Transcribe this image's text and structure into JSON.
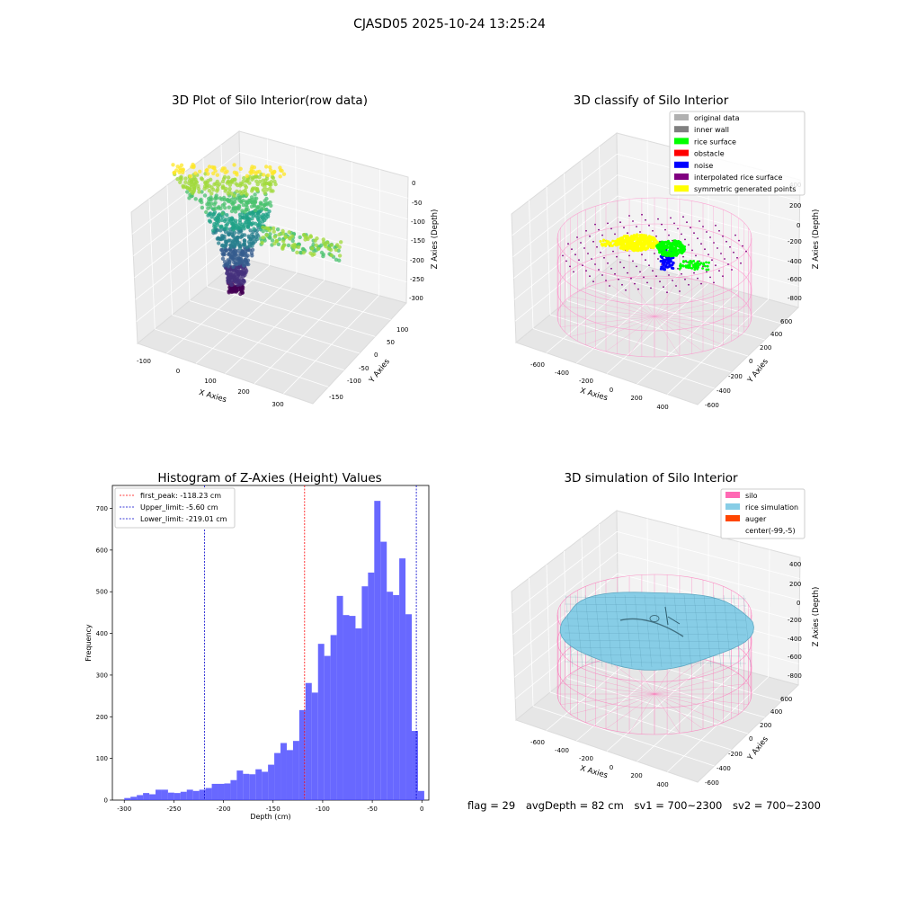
{
  "figure": {
    "suptitle": "CJASD05 2025-10-24 13:25:24"
  },
  "status": {
    "flag": "flag = 29",
    "avg_depth": "avgDepth = 82 cm",
    "sv1": "sv1 = 700~2300",
    "sv2": "sv2 = 700~2300"
  },
  "colors": {
    "histogram_bar": "#4d4dff",
    "first_peak_line": "#ff0000",
    "limit_line": "#0000cc",
    "silo_wire": "#ff69b4",
    "rice_surface": "#87cde6",
    "rice_points": "#00ff00",
    "noise_points": "#0000ff",
    "symmetric_points": "#ffff00"
  },
  "chart_data": [
    {
      "type": "scatter",
      "title": "3D Plot of Silo Interior(row data)",
      "xlabel": "X Axies",
      "ylabel": "Y Axies",
      "zlabel": "Z Axies (Depth)",
      "x_ticks": [
        "-100",
        "0",
        "100",
        "200",
        "300"
      ],
      "y_ticks": [
        "-150",
        "-100",
        "-50",
        "0",
        "50",
        "100"
      ],
      "z_ticks": [
        "0",
        "-50",
        "-100",
        "-150",
        "-200",
        "-250",
        "-300"
      ],
      "colormap": "viridis"
    },
    {
      "type": "scatter",
      "title": "3D classify of Silo Interior",
      "xlabel": "X Axies",
      "ylabel": "Y Axies",
      "zlabel": "Z Axies (Depth)",
      "x_ticks": [
        "-600",
        "-400",
        "-200",
        "0",
        "200",
        "400"
      ],
      "y_ticks": [
        "-600",
        "-400",
        "-200",
        "0",
        "200",
        "400",
        "600"
      ],
      "z_ticks": [
        "400",
        "200",
        "0",
        "-200",
        "-400",
        "-600",
        "-800"
      ],
      "legend_position": "top-right",
      "legend": [
        {
          "label": "original data",
          "color": "#b0b0b0"
        },
        {
          "label": "inner wall",
          "color": "#808080"
        },
        {
          "label": "rice surface",
          "color": "#00ff00"
        },
        {
          "label": "obstacle",
          "color": "#ff0000"
        },
        {
          "label": "noise",
          "color": "#0000ff"
        },
        {
          "label": "interpolated rice surface",
          "color": "#800080"
        },
        {
          "label": "symmetric generated points",
          "color": "#ffff00"
        }
      ]
    },
    {
      "type": "bar",
      "title": "Histogram of Z-Axies (Height) Values",
      "xlabel": "Depth (cm)",
      "ylabel": "Frequency",
      "xlim": [
        -312,
        7
      ],
      "ylim": [
        0,
        755
      ],
      "x_ticks": [
        -300,
        -250,
        -200,
        -150,
        -100,
        -50,
        0
      ],
      "y_ticks": [
        0,
        100,
        200,
        300,
        400,
        500,
        600,
        700
      ],
      "bin_start": -300,
      "bin_width": 6.3,
      "values": [
        5,
        8,
        12,
        17,
        14,
        25,
        25,
        18,
        17,
        20,
        25,
        22,
        25,
        29,
        39,
        39,
        40,
        48,
        71,
        63,
        62,
        74,
        68,
        85,
        113,
        137,
        120,
        142,
        216,
        281,
        258,
        375,
        346,
        396,
        490,
        444,
        442,
        412,
        513,
        546,
        718,
        620,
        500,
        492,
        580,
        446,
        166,
        22
      ],
      "lines": [
        {
          "label": "first_peak: -118.23 cm",
          "x": -118.23,
          "color": "#ff0000"
        },
        {
          "label": "Upper_limit: -5.60 cm",
          "x": -5.6,
          "color": "#0000cc"
        },
        {
          "label": "Lower_limit: -219.01 cm",
          "x": -219.01,
          "color": "#0000cc"
        }
      ],
      "legend_position": "top-left"
    },
    {
      "type": "surface",
      "title": "3D simulation of Silo Interior",
      "xlabel": "X Axies",
      "ylabel": "Y Axies",
      "zlabel": "Z Axies (Depth)",
      "x_ticks": [
        "-600",
        "-400",
        "-200",
        "0",
        "200",
        "400"
      ],
      "y_ticks": [
        "-600",
        "-400",
        "-200",
        "0",
        "200",
        "400",
        "600"
      ],
      "z_ticks": [
        "400",
        "200",
        "0",
        "-200",
        "-400",
        "-600",
        "-800"
      ],
      "legend_position": "top-right",
      "legend": [
        {
          "label": "silo",
          "color": "#ff69b4"
        },
        {
          "label": "rice simulation",
          "color": "#87cde6"
        },
        {
          "label": "auger",
          "color": "#ff4500"
        },
        {
          "label": "center(-99,-5)",
          "color": ""
        }
      ]
    }
  ]
}
